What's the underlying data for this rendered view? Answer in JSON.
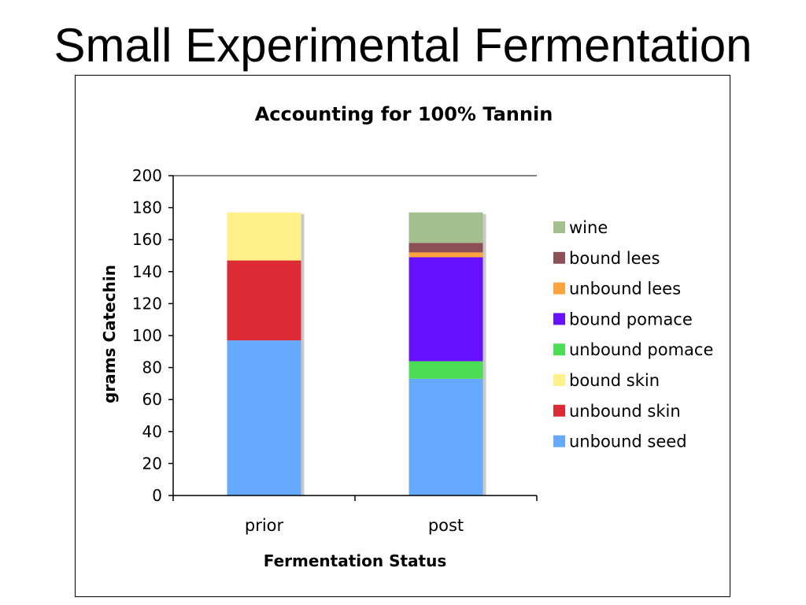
{
  "slide": {
    "title": "Small Experimental Fermentation"
  },
  "chart_data": {
    "type": "bar",
    "stacked": true,
    "title": "Accounting for 100% Tannin",
    "xlabel": "Fermentation Status",
    "ylabel": "grams Catechin",
    "ylim": [
      0,
      200
    ],
    "yticks": [
      0,
      20,
      40,
      60,
      80,
      100,
      120,
      140,
      160,
      180,
      200
    ],
    "categories": [
      "prior",
      "post"
    ],
    "legend_position": "right",
    "series": [
      {
        "name": "unbound seed",
        "color": "#66aaff",
        "values": [
          97,
          73
        ]
      },
      {
        "name": "unbound skin",
        "color": "#dd2b35",
        "values": [
          50,
          0
        ]
      },
      {
        "name": "bound skin",
        "color": "#fff08a",
        "values": [
          30,
          0
        ]
      },
      {
        "name": "unbound pomace",
        "color": "#4ddc55",
        "values": [
          0,
          11
        ]
      },
      {
        "name": "bound pomace",
        "color": "#6611ff",
        "values": [
          0,
          65
        ]
      },
      {
        "name": "unbound lees",
        "color": "#ffa33c",
        "values": [
          0,
          3
        ]
      },
      {
        "name": "bound lees",
        "color": "#8b5055",
        "values": [
          0,
          6
        ]
      },
      {
        "name": "wine",
        "color": "#a3bf8e",
        "values": [
          0,
          19
        ]
      }
    ]
  }
}
